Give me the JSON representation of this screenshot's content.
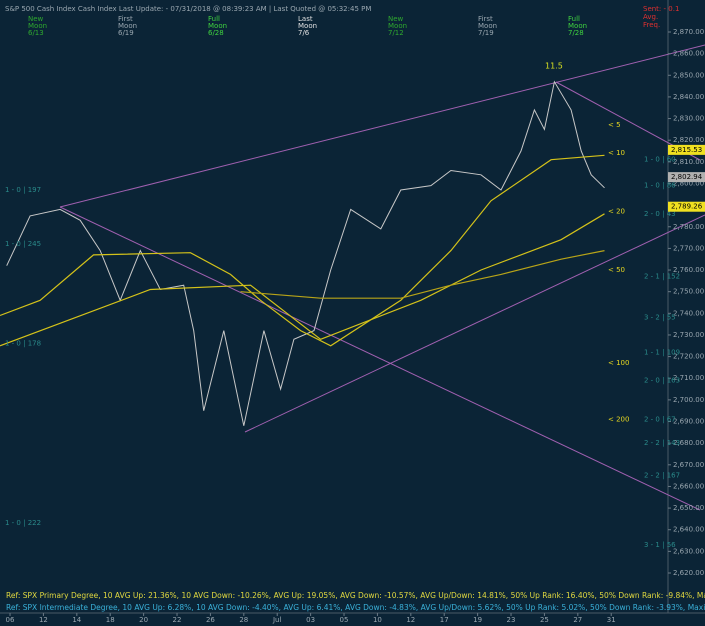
{
  "header": "S&P 500 Cash Index  Cash Index  Last Update: - 07/31/2018 @ 08:39:23 AM | Last Quoted @ 05:32:45 PM",
  "moons": [
    {
      "word": "New",
      "name": "Moon",
      "date": "6/13",
      "color": "#2fa82f"
    },
    {
      "word": "First",
      "name": "Moon",
      "date": "6/19",
      "color": "#9aa7b0"
    },
    {
      "word": "Full",
      "name": "Moon",
      "date": "6/28",
      "color": "#3fd23f"
    },
    {
      "word": "Last",
      "name": "Moon",
      "date": "7/6",
      "color": "#e0e0e0"
    },
    {
      "word": "New",
      "name": "Moon",
      "date": "7/12",
      "color": "#2fa82f"
    },
    {
      "word": "First",
      "name": "Moon",
      "date": "7/19",
      "color": "#9aa7b0"
    },
    {
      "word": "Full",
      "name": "Moon",
      "date": "7/28",
      "color": "#3fd23f"
    }
  ],
  "status": [
    "Sent: - 0.1",
    "Avg.",
    "Freq."
  ],
  "chart_data": {
    "type": "line",
    "annotation": "11.5",
    "xlim": [
      -0.3,
      19.7
    ],
    "xticks": [
      {
        "value": 0,
        "label": "06"
      },
      {
        "value": 1,
        "label": "12"
      },
      {
        "value": 2,
        "label": "14"
      },
      {
        "value": 3,
        "label": "18"
      },
      {
        "value": 4,
        "label": "20"
      },
      {
        "value": 5,
        "label": "22"
      },
      {
        "value": 6,
        "label": "26"
      },
      {
        "value": 7,
        "label": "28"
      },
      {
        "value": 8,
        "label": "Jul"
      },
      {
        "value": 9,
        "label": "03"
      },
      {
        "value": 10,
        "label": "05"
      },
      {
        "value": 11,
        "label": "10"
      },
      {
        "value": 12,
        "label": "12"
      },
      {
        "value": 13,
        "label": "17"
      },
      {
        "value": 14,
        "label": "19"
      },
      {
        "value": 15,
        "label": "23"
      },
      {
        "value": 16,
        "label": "25"
      },
      {
        "value": 17,
        "label": "27"
      },
      {
        "value": 18,
        "label": "31"
      }
    ],
    "ylim": [
      2620,
      2870
    ],
    "yticks": [
      {
        "value": 2870,
        "label": "2,870.00"
      },
      {
        "value": 2860,
        "label": "2,860.00"
      },
      {
        "value": 2850,
        "label": "2,850.00"
      },
      {
        "value": 2840,
        "label": "2,840.00"
      },
      {
        "value": 2830,
        "label": "2,830.00"
      },
      {
        "value": 2820,
        "label": "2,820.00"
      },
      {
        "value": 2810,
        "label": "2,810.00"
      },
      {
        "value": 2800,
        "label": "2,800.00"
      },
      {
        "value": 2790,
        "label": "2,790.00"
      },
      {
        "value": 2780,
        "label": "2,780.00"
      },
      {
        "value": 2770,
        "label": "2,770.00"
      },
      {
        "value": 2760,
        "label": "2,760.00"
      },
      {
        "value": 2750,
        "label": "2,750.00"
      },
      {
        "value": 2740,
        "label": "2,740.00"
      },
      {
        "value": 2730,
        "label": "2,730.00"
      },
      {
        "value": 2720,
        "label": "2,720.00"
      },
      {
        "value": 2710,
        "label": "2,710.00"
      },
      {
        "value": 2700,
        "label": "2,700.00"
      },
      {
        "value": 2690,
        "label": "2,690.00"
      },
      {
        "value": 2680,
        "label": "2,680.00"
      },
      {
        "value": 2670,
        "label": "2,670.00"
      },
      {
        "value": 2660,
        "label": "2,660.00"
      },
      {
        "value": 2650,
        "label": "2,650.00"
      },
      {
        "value": 2640,
        "label": "2,640.00"
      },
      {
        "value": 2630,
        "label": "2,630.00"
      },
      {
        "value": 2620,
        "label": "2,620.00"
      }
    ],
    "series": [
      {
        "color": "#c8c8c8",
        "x": [
          -0.1,
          0.6,
          1.5,
          2.1,
          2.7,
          3.3,
          3.9,
          4.5,
          5.2,
          5.5,
          5.8,
          6.4,
          7.0,
          7.6,
          8.1,
          8.5,
          9.1,
          9.6,
          10.2,
          11.1,
          11.7,
          12.6,
          13.2,
          14.1,
          14.7,
          15.3,
          15.7,
          16.0,
          16.3,
          16.8,
          17.1,
          17.4,
          17.8
        ],
        "values": [
          2762,
          2785,
          2788,
          2783,
          2769,
          2746,
          2769,
          2751,
          2753,
          2732,
          2695,
          2732,
          2688,
          2732,
          2705,
          2728,
          2732,
          2760,
          2788,
          2779,
          2797,
          2799,
          2806,
          2804,
          2797,
          2815,
          2834,
          2825,
          2847,
          2834,
          2815,
          2804,
          2798
        ]
      },
      {
        "color": "#d4c21a",
        "x": [
          -0.3,
          0.9,
          2.5,
          5.4,
          6.6,
          7.5,
          8.7,
          9.6,
          11.7,
          13.2,
          14.4,
          16.2,
          17.8
        ],
        "values": [
          2739,
          2746,
          2767,
          2768,
          2758,
          2746,
          2732,
          2725,
          2746,
          2769,
          2792,
          2811,
          2813
        ]
      },
      {
        "color": "#d4c21a",
        "x": [
          -0.3,
          4.2,
          7.2,
          9.3,
          12.3,
          14.1,
          16.5,
          17.8
        ],
        "values": [
          2725,
          2751,
          2753,
          2728,
          2746,
          2760,
          2774,
          2786
        ]
      },
      {
        "color": "#b8a418",
        "x": [
          6.9,
          9.3,
          11.7,
          13.2,
          14.7,
          16.5,
          17.8
        ],
        "values": [
          2750,
          2747,
          2747,
          2753,
          2758,
          2765,
          2769
        ]
      }
    ],
    "ma_labels": [
      {
        "label": "< 5",
        "value": 2827
      },
      {
        "label": "< 10",
        "value": 2814
      },
      {
        "label": "< 20",
        "value": 2787
      },
      {
        "label": "< 50",
        "value": 2760
      },
      {
        "label": "< 100",
        "value": 2717
      },
      {
        "label": "< 200",
        "value": 2691
      }
    ],
    "price_boxes": [
      {
        "value": 2815.53,
        "label": "2,815.53",
        "color": "#f0e020"
      },
      {
        "value": 2802.94,
        "label": "2,802.94",
        "color": "#b0b0b0"
      },
      {
        "value": 2789.26,
        "label": "2,789.26",
        "color": "#f0e020"
      }
    ],
    "right_counts": [
      {
        "label": "1 - 0 | 60",
        "value": 2811
      },
      {
        "label": "1 - 0 | 86",
        "value": 2799
      },
      {
        "label": "2 - 0 | 43",
        "value": 2786
      },
      {
        "label": "2 - 1 | 152",
        "value": 2757
      },
      {
        "label": "3 - 2 | 55",
        "value": 2738
      },
      {
        "label": "1 - 1 | 109",
        "value": 2722
      },
      {
        "label": "2 - 0 | 163",
        "value": 2709
      },
      {
        "label": "2 - 0 | 67",
        "value": 2691
      },
      {
        "label": "2 - 2 | 143",
        "value": 2680
      },
      {
        "label": "2 - 2 | 167",
        "value": 2665
      },
      {
        "label": "3 - 1 | 56",
        "value": 2633
      }
    ],
    "left_counts": [
      {
        "label": "1 - 0 | 197",
        "value": 2797
      },
      {
        "label": "1 - 0 | 245",
        "value": 2772
      },
      {
        "label": "1 - 0 | 178",
        "value": 2726
      },
      {
        "label": "1 - 0 | 222",
        "value": 2643
      }
    ]
  },
  "footer": [
    "Ref: SPX Primary Degree, 10 AVG Up: 21.36%, 10 AVG Down: -10.26%, AVG Up: 19.05%, AVG Down: -10.57%, AVG Up/Down: 14.81%, 50%  Up Rank: 16.40%, 50% Down Rank: -9.84%, Maximum Up: 58.71%, Maximum",
    "Ref: SPX Intermediate Degree, 10 AVG Up: 6.28%, 10 AVG Down: -4.40%, AVG Up: 6.41%, AVG Down: -4.83%, AVG Up/Down: 5.62%, 50%  Up Rank: 5.02%, 50% Down Rank: -3.93%, Maximum Up: 20.27%, Maximum Do"
  ]
}
